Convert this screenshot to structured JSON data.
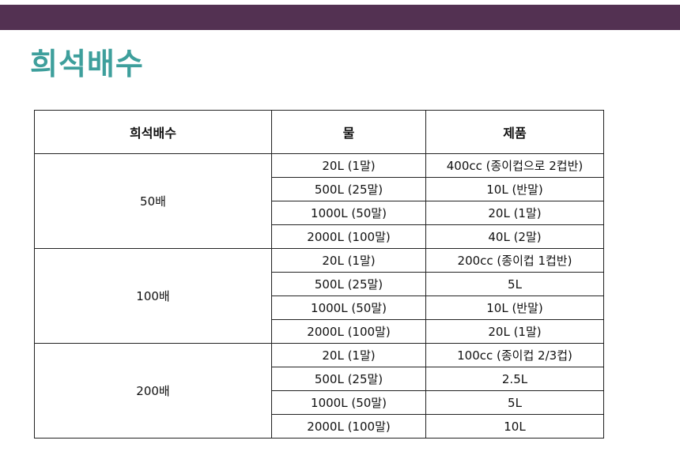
{
  "title": "희석배수",
  "colors": {
    "top_bar": "#533152",
    "title": "#3e9f9c"
  },
  "table": {
    "headers": [
      "희석배수",
      "물",
      "제품"
    ],
    "groups": [
      {
        "ratio": "50배",
        "rows": [
          {
            "water": "20L (1말)",
            "product": "400cc (종이컵으로 2컵반)"
          },
          {
            "water": "500L (25말)",
            "product": "10L (반말)"
          },
          {
            "water": "1000L (50말)",
            "product": "20L (1말)"
          },
          {
            "water": "2000L (100말)",
            "product": "40L (2말)"
          }
        ]
      },
      {
        "ratio": "100배",
        "rows": [
          {
            "water": "20L (1말)",
            "product": "200cc (종이컵 1컵반)"
          },
          {
            "water": "500L (25말)",
            "product": "5L"
          },
          {
            "water": "1000L (50말)",
            "product": "10L (반말)"
          },
          {
            "water": "2000L (100말)",
            "product": "20L (1말)"
          }
        ]
      },
      {
        "ratio": "200배",
        "rows": [
          {
            "water": "20L (1말)",
            "product": "100cc (종이컵 2/3컵)"
          },
          {
            "water": "500L (25말)",
            "product": "2.5L"
          },
          {
            "water": "1000L (50말)",
            "product": "5L"
          },
          {
            "water": "2000L (100말)",
            "product": "10L"
          }
        ]
      }
    ]
  }
}
